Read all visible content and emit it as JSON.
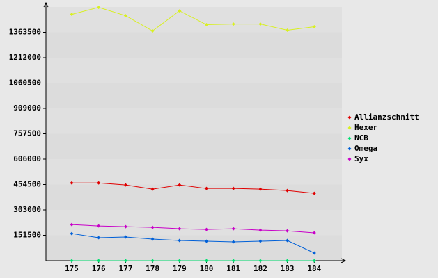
{
  "chart_data": {
    "type": "line",
    "categories": [
      "175",
      "176",
      "177",
      "178",
      "179",
      "180",
      "181",
      "182",
      "183",
      "184"
    ],
    "series": [
      {
        "name": "Allianzschnitt",
        "color": "#e00000",
        "values": [
          464000,
          464000,
          451700,
          426800,
          451700,
          430900,
          430900,
          426800,
          418500,
          402000
        ]
      },
      {
        "name": "Hexer",
        "color": "#d8f020",
        "values": [
          1471000,
          1512600,
          1462800,
          1371700,
          1491800,
          1409000,
          1413000,
          1413000,
          1375800,
          1396500
        ]
      },
      {
        "name": "NCB",
        "color": "#00e070",
        "values": [
          0,
          0,
          0,
          0,
          0,
          0,
          0,
          0,
          0,
          0
        ]
      },
      {
        "name": "Omega",
        "color": "#0060d8",
        "values": [
          161600,
          136800,
          140900,
          128500,
          120200,
          116000,
          111900,
          116000,
          120200,
          45600
        ]
      },
      {
        "name": "Syx",
        "color": "#c800c8",
        "values": [
          215500,
          207200,
          203000,
          198900,
          190600,
          186500,
          190600,
          182300,
          178200,
          165800
        ]
      }
    ],
    "ylim": [
      0,
      1515000
    ],
    "yticks": [
      151500,
      303000,
      454500,
      606000,
      757500,
      909000,
      1060500,
      1212000,
      1363500
    ]
  }
}
